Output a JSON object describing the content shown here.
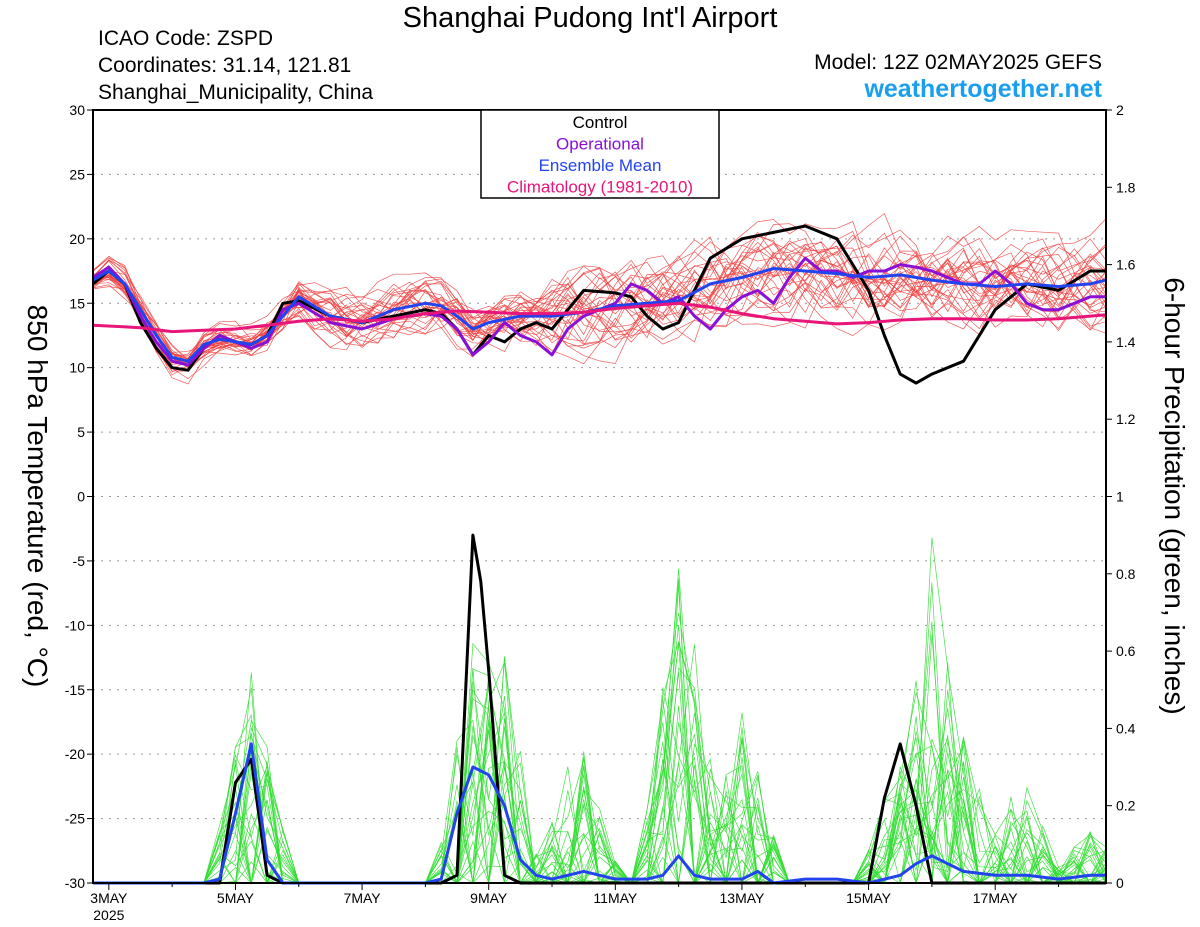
{
  "header": {
    "title": "Shanghai Pudong Int'l Airport",
    "icao": "ICAO Code: ZSPD",
    "coordinates": "Coordinates: 31.14, 121.81",
    "location": "Shanghai_Municipality, China",
    "model": "Model: 12Z 02MAY2025 GEFS",
    "website": "weathertogether.net"
  },
  "chart_data": {
    "type": "line",
    "y_left_label": "850 hPa Temperature (red, °C)",
    "y_right_label": "6-hour Precipitation (green, inches)",
    "y_left_range": [
      -30,
      30
    ],
    "y_left_ticks": [
      "30",
      "25",
      "20",
      "15",
      "10",
      "5",
      "0",
      "-5",
      "-10",
      "-15",
      "-20",
      "-25",
      "-30"
    ],
    "y_right_range": [
      0,
      2
    ],
    "y_right_ticks": [
      "2",
      "1.8",
      "1.6",
      "1.4",
      "1.2",
      "1",
      "0.8",
      "0.6",
      "0.4",
      "0.2",
      "0"
    ],
    "x_range_days": [
      2.75,
      18.75
    ],
    "x_ticks": [
      {
        "day": 3,
        "label": "3MAY",
        "sub": "2025"
      },
      {
        "day": 5,
        "label": "5MAY",
        "sub": ""
      },
      {
        "day": 7,
        "label": "7MAY",
        "sub": ""
      },
      {
        "day": 9,
        "label": "9MAY",
        "sub": ""
      },
      {
        "day": 11,
        "label": "11MAY",
        "sub": ""
      },
      {
        "day": 13,
        "label": "13MAY",
        "sub": ""
      },
      {
        "day": 15,
        "label": "15MAY",
        "sub": ""
      },
      {
        "day": 17,
        "label": "17MAY",
        "sub": ""
      }
    ],
    "grid": "dotted horizontal",
    "legend_position": "top-center",
    "legend": [
      {
        "name": "Control",
        "color": "#000000"
      },
      {
        "name": "Operational",
        "color": "#8a10d6"
      },
      {
        "name": "Ensemble Mean",
        "color": "#2244ee"
      },
      {
        "name": "Climatology (1981-2010)",
        "color": "#e8157a"
      }
    ],
    "colors": {
      "members_temp": "#f04040",
      "members_precip": "#33dd33"
    },
    "series_temperature": [
      {
        "name": "Control",
        "color": "#000000",
        "x": [
          2.75,
          3.0,
          3.25,
          3.5,
          3.75,
          4.0,
          4.25,
          4.5,
          4.75,
          5.0,
          5.25,
          5.5,
          5.75,
          6.0,
          6.5,
          7.0,
          7.5,
          8.0,
          8.25,
          8.5,
          8.75,
          9.0,
          9.25,
          9.5,
          9.75,
          10.0,
          10.5,
          11.0,
          11.25,
          11.5,
          11.75,
          12.0,
          12.5,
          13.0,
          13.5,
          14.0,
          14.5,
          15.0,
          15.25,
          15.5,
          15.75,
          16.0,
          16.5,
          17.0,
          17.5,
          18.0,
          18.5,
          18.75
        ],
        "y": [
          16.5,
          17.5,
          16.5,
          13.5,
          11.5,
          10.0,
          9.8,
          11.5,
          12.5,
          12.0,
          11.8,
          12.5,
          15.0,
          15.2,
          14.0,
          13.5,
          14.0,
          14.5,
          14.2,
          13.0,
          11.0,
          12.5,
          12.0,
          13.0,
          13.5,
          13.0,
          16.0,
          15.8,
          15.5,
          14.0,
          13.0,
          13.5,
          18.5,
          20.0,
          20.5,
          21.0,
          20.0,
          16.0,
          12.5,
          9.5,
          8.8,
          9.5,
          10.5,
          14.5,
          16.5,
          16.0,
          17.5,
          17.5
        ]
      },
      {
        "name": "Operational",
        "color": "#8a10d6",
        "x": [
          2.75,
          3.0,
          3.25,
          3.5,
          3.75,
          4.0,
          4.25,
          4.5,
          4.75,
          5.0,
          5.25,
          5.5,
          5.75,
          6.0,
          6.5,
          7.0,
          7.5,
          8.0,
          8.25,
          8.5,
          8.75,
          9.0,
          9.25,
          9.5,
          9.75,
          10.0,
          10.25,
          10.5,
          11.0,
          11.25,
          11.5,
          11.75,
          12.0,
          12.25,
          12.5,
          12.75,
          13.0,
          13.25,
          13.5,
          13.75,
          14.0,
          14.25,
          14.5,
          14.75,
          15.0,
          15.25,
          15.5,
          15.75,
          16.0,
          16.25,
          16.5,
          16.75,
          17.0,
          17.25,
          17.5,
          17.75,
          18.0,
          18.25,
          18.5,
          18.75
        ],
        "y": [
          17.0,
          17.8,
          16.5,
          14.0,
          12.0,
          10.5,
          10.2,
          11.5,
          12.5,
          12.0,
          11.5,
          12.0,
          14.5,
          15.0,
          13.5,
          13.0,
          13.8,
          14.2,
          14.0,
          13.0,
          11.0,
          12.0,
          13.5,
          12.5,
          12.0,
          11.0,
          13.0,
          14.0,
          15.0,
          16.5,
          16.0,
          15.0,
          15.5,
          14.0,
          13.0,
          14.5,
          15.5,
          16.0,
          15.0,
          17.0,
          18.5,
          17.5,
          17.5,
          17.0,
          17.5,
          17.5,
          18.0,
          17.8,
          17.5,
          17.0,
          16.5,
          16.5,
          17.5,
          16.5,
          15.0,
          14.5,
          14.5,
          15.0,
          15.5,
          15.5
        ]
      },
      {
        "name": "Ensemble Mean",
        "color": "#2244ee",
        "x": [
          2.75,
          3.0,
          3.25,
          3.5,
          3.75,
          4.0,
          4.25,
          4.5,
          4.75,
          5.0,
          5.25,
          5.5,
          5.75,
          6.0,
          6.5,
          7.0,
          7.5,
          8.0,
          8.25,
          8.5,
          8.75,
          9.0,
          9.5,
          10.0,
          10.5,
          11.0,
          11.5,
          12.0,
          12.5,
          13.0,
          13.5,
          14.0,
          14.5,
          15.0,
          15.5,
          16.0,
          16.5,
          17.0,
          17.5,
          18.0,
          18.5,
          18.75
        ],
        "y": [
          16.8,
          17.5,
          16.5,
          14.5,
          12.5,
          10.8,
          10.5,
          11.8,
          12.2,
          12.0,
          11.8,
          12.5,
          14.0,
          15.5,
          14.0,
          13.5,
          14.5,
          15.0,
          14.8,
          14.0,
          13.0,
          13.5,
          14.0,
          14.0,
          14.3,
          14.8,
          15.0,
          15.2,
          16.5,
          17.0,
          17.7,
          17.5,
          17.3,
          17.0,
          17.2,
          16.8,
          16.5,
          16.3,
          16.5,
          16.3,
          16.5,
          16.8
        ]
      },
      {
        "name": "Climatology (1981-2010)",
        "color": "#e8157a",
        "x": [
          2.75,
          3.5,
          4.0,
          4.5,
          5.0,
          5.5,
          6.0,
          6.5,
          7.0,
          7.5,
          8.0,
          8.5,
          9.0,
          9.5,
          10.0,
          10.5,
          11.0,
          11.5,
          12.0,
          12.5,
          13.0,
          13.5,
          14.0,
          14.5,
          15.0,
          15.5,
          16.0,
          16.5,
          17.0,
          17.5,
          18.0,
          18.5,
          18.75
        ],
        "y": [
          13.3,
          13.1,
          12.8,
          12.9,
          13.0,
          13.3,
          13.6,
          13.8,
          13.6,
          13.8,
          14.2,
          14.4,
          14.3,
          14.2,
          14.2,
          14.3,
          14.6,
          14.8,
          15.0,
          14.7,
          14.2,
          13.8,
          13.6,
          13.4,
          13.5,
          13.7,
          13.8,
          13.8,
          13.7,
          13.7,
          13.8,
          14.0,
          14.1
        ]
      }
    ],
    "series_precipitation": [
      {
        "name": "Control",
        "color": "#000000",
        "x": [
          2.75,
          4.5,
          4.75,
          5.0,
          5.25,
          5.5,
          5.75,
          6.0,
          7.0,
          8.0,
          8.25,
          8.5,
          8.75,
          8.875,
          9.0,
          9.25,
          9.5,
          9.75,
          10.0,
          15.0,
          15.25,
          15.5,
          15.75,
          16.0,
          16.5,
          17.0,
          18.0,
          18.75
        ],
        "y": [
          0,
          0,
          0,
          0.26,
          0.32,
          0.02,
          0,
          0,
          0,
          0,
          0,
          0.02,
          0.9,
          0.78,
          0.55,
          0.02,
          0,
          0,
          0,
          0,
          0.22,
          0.36,
          0.2,
          0,
          0,
          0,
          0,
          0
        ]
      },
      {
        "name": "Ensemble Mean",
        "color": "#2244ee",
        "x": [
          2.75,
          4.5,
          4.75,
          5.0,
          5.25,
          5.5,
          5.75,
          6.0,
          7.0,
          8.0,
          8.25,
          8.5,
          8.75,
          9.0,
          9.25,
          9.5,
          9.75,
          10.0,
          10.5,
          11.0,
          11.5,
          11.75,
          12.0,
          12.25,
          12.5,
          13.0,
          13.25,
          13.5,
          14.0,
          14.5,
          15.0,
          15.5,
          15.75,
          16.0,
          16.25,
          16.5,
          17.0,
          17.5,
          18.0,
          18.5,
          18.75
        ],
        "y": [
          0,
          0,
          0.01,
          0.18,
          0.36,
          0.06,
          0,
          0,
          0,
          0,
          0.01,
          0.18,
          0.3,
          0.28,
          0.2,
          0.06,
          0.02,
          0.01,
          0.03,
          0.01,
          0.01,
          0.02,
          0.07,
          0.02,
          0.01,
          0.01,
          0.03,
          0,
          0.01,
          0.01,
          0,
          0.02,
          0.05,
          0.07,
          0.05,
          0.03,
          0.02,
          0.02,
          0.01,
          0.02,
          0.02
        ]
      }
    ]
  }
}
